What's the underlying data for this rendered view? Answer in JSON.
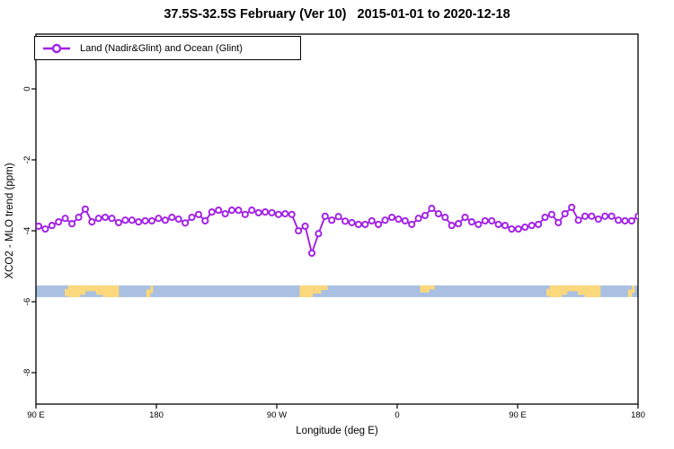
{
  "title": "37.5S-32.5S February (Ver 10)   2015-01-01 to 2020-12-18",
  "legend": {
    "label": "Land (Nadir&Glint) and Ocean (Glint)",
    "marker": "open-circle-on-line",
    "color": "#a21fe8"
  },
  "axes": {
    "ylabel": "XCO2 - MLO trend (ppm)",
    "xlabel": "Longitude (deg E)",
    "y_ticks": [
      {
        "value": 0,
        "label": "0"
      },
      {
        "value": -2,
        "label": "-2"
      },
      {
        "value": -4,
        "label": "-4"
      },
      {
        "value": -6,
        "label": "-6"
      },
      {
        "value": -8,
        "label": "-8"
      }
    ],
    "x_ticks": [
      {
        "lon": 90,
        "label": "90 E"
      },
      {
        "lon": 180,
        "label": "180"
      },
      {
        "lon": 270,
        "label": "90 W"
      },
      {
        "lon": 360,
        "label": "0"
      },
      {
        "lon": 450,
        "label": "90 E"
      },
      {
        "lon": 540,
        "label": "180"
      }
    ]
  },
  "chart_data": {
    "type": "line",
    "title": "37.5S-32.5S February (Ver 10)   2015-01-01 to 2020-12-18",
    "xlabel": "Longitude (deg E)",
    "ylabel": "XCO2 - MLO trend (ppm)",
    "xlim_deg_east": [
      90,
      540
    ],
    "ylim": [
      -8.9,
      1.55
    ],
    "grid": false,
    "legend_position": "top-left",
    "series": [
      {
        "name": "Land (Nadir&Glint) and Ocean (Glint)",
        "color": "#a21fe8",
        "marker": "open-circle",
        "lon_start": 92.0,
        "lon_step": 4.98,
        "values": [
          -3.87,
          -3.95,
          -3.85,
          -3.75,
          -3.65,
          -3.8,
          -3.62,
          -3.39,
          -3.75,
          -3.65,
          -3.62,
          -3.65,
          -3.77,
          -3.7,
          -3.7,
          -3.75,
          -3.72,
          -3.72,
          -3.65,
          -3.7,
          -3.62,
          -3.67,
          -3.78,
          -3.62,
          -3.54,
          -3.72,
          -3.47,
          -3.42,
          -3.52,
          -3.42,
          -3.42,
          -3.54,
          -3.42,
          -3.49,
          -3.47,
          -3.49,
          -3.54,
          -3.52,
          -3.54,
          -4.0,
          -3.87,
          -4.63,
          -4.08,
          -3.59,
          -3.7,
          -3.6,
          -3.73,
          -3.77,
          -3.82,
          -3.82,
          -3.72,
          -3.82,
          -3.7,
          -3.62,
          -3.67,
          -3.72,
          -3.82,
          -3.65,
          -3.57,
          -3.37,
          -3.52,
          -3.62,
          -3.85,
          -3.8,
          -3.62,
          -3.75,
          -3.82,
          -3.72,
          -3.72,
          -3.82,
          -3.85,
          -3.95,
          -3.95,
          -3.9,
          -3.85,
          -3.82,
          -3.62,
          -3.54,
          -3.77,
          -3.52,
          -3.34,
          -3.7,
          -3.59,
          -3.59,
          -3.67,
          -3.59,
          -3.59,
          -3.7,
          -3.72,
          -3.72,
          -3.59
        ]
      }
    ],
    "map_strip": {
      "description": "latitude-band land/ocean strip",
      "y_top_value": -5.54,
      "y_bottom_value": -5.87,
      "ocean_color": "#a9c0e2",
      "land_color": "#fcd87c",
      "land_patches": [
        {
          "name": "australia",
          "from": 111.5,
          "to": 114,
          "top": 0.3,
          "bot": 0.9
        },
        {
          "name": "australia",
          "from": 114,
          "to": 123,
          "top": 0.0,
          "bot": 1.0
        },
        {
          "name": "australia",
          "from": 123,
          "to": 127,
          "top": 0.0,
          "bot": 0.8
        },
        {
          "name": "australia",
          "from": 127,
          "to": 135,
          "top": 0.0,
          "bot": 0.5
        },
        {
          "name": "australia",
          "from": 135,
          "to": 140,
          "top": 0.0,
          "bot": 0.8
        },
        {
          "name": "australia",
          "from": 140,
          "to": 152,
          "top": 0.0,
          "bot": 1.0
        },
        {
          "name": "new-zealand",
          "from": 172.5,
          "to": 175.5,
          "top": 0.35,
          "bot": 1.0
        },
        {
          "name": "new-zealand",
          "from": 175.5,
          "to": 177.5,
          "top": 0.0,
          "bot": 0.65
        },
        {
          "name": "south-america",
          "from": 287,
          "to": 297,
          "top": 0.0,
          "bot": 1.0
        },
        {
          "name": "south-america",
          "from": 297,
          "to": 303,
          "top": 0.0,
          "bot": 0.7
        },
        {
          "name": "south-america",
          "from": 303,
          "to": 308,
          "top": 0.0,
          "bot": 0.4
        },
        {
          "name": "south-africa",
          "from": 377,
          "to": 384,
          "top": 0.0,
          "bot": 0.6
        },
        {
          "name": "south-africa",
          "from": 384,
          "to": 388,
          "top": 0.0,
          "bot": 0.35
        },
        {
          "name": "australia",
          "from": 471.5,
          "to": 474,
          "top": 0.3,
          "bot": 0.9
        },
        {
          "name": "australia",
          "from": 474,
          "to": 483,
          "top": 0.0,
          "bot": 1.0
        },
        {
          "name": "australia",
          "from": 483,
          "to": 487,
          "top": 0.0,
          "bot": 0.8
        },
        {
          "name": "australia",
          "from": 487,
          "to": 495,
          "top": 0.0,
          "bot": 0.5
        },
        {
          "name": "australia",
          "from": 495,
          "to": 500,
          "top": 0.0,
          "bot": 0.8
        },
        {
          "name": "australia",
          "from": 500,
          "to": 512,
          "top": 0.0,
          "bot": 1.0
        },
        {
          "name": "new-zealand",
          "from": 532.5,
          "to": 535.5,
          "top": 0.35,
          "bot": 1.0
        },
        {
          "name": "new-zealand",
          "from": 535.5,
          "to": 537.5,
          "top": 0.0,
          "bot": 0.65
        }
      ]
    }
  }
}
